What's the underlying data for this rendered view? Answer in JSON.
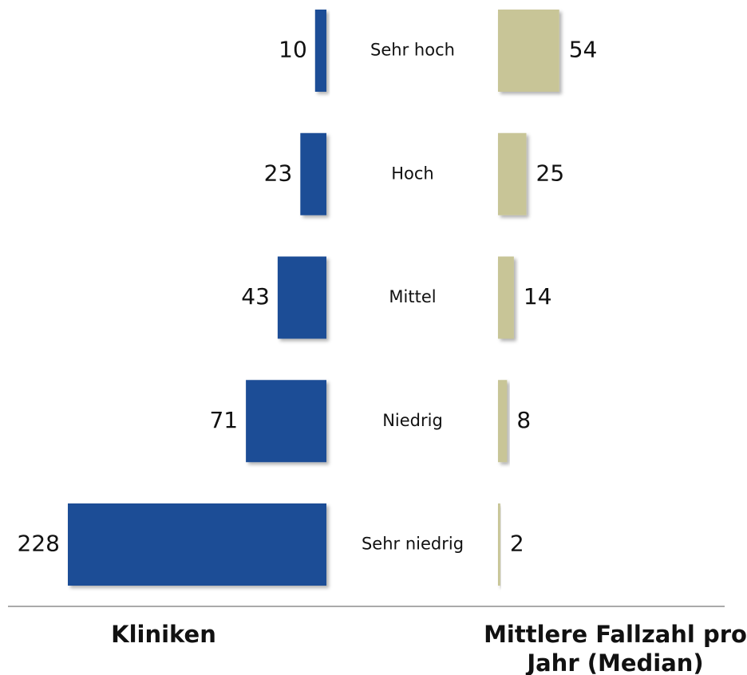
{
  "chart_data": {
    "type": "butterfly",
    "categories": [
      "Sehr hoch",
      "Hoch",
      "Mittel",
      "Niedrig",
      "Sehr niedrig"
    ],
    "series": [
      {
        "name": "Kliniken",
        "color": "#1f4e96",
        "values": [
          10,
          23,
          43,
          71,
          228
        ]
      },
      {
        "name": "Mittlere Fallzahl pro Jahr (Median)",
        "color": "#c8c597",
        "values": [
          54,
          25,
          14,
          8,
          2
        ]
      }
    ]
  }
}
